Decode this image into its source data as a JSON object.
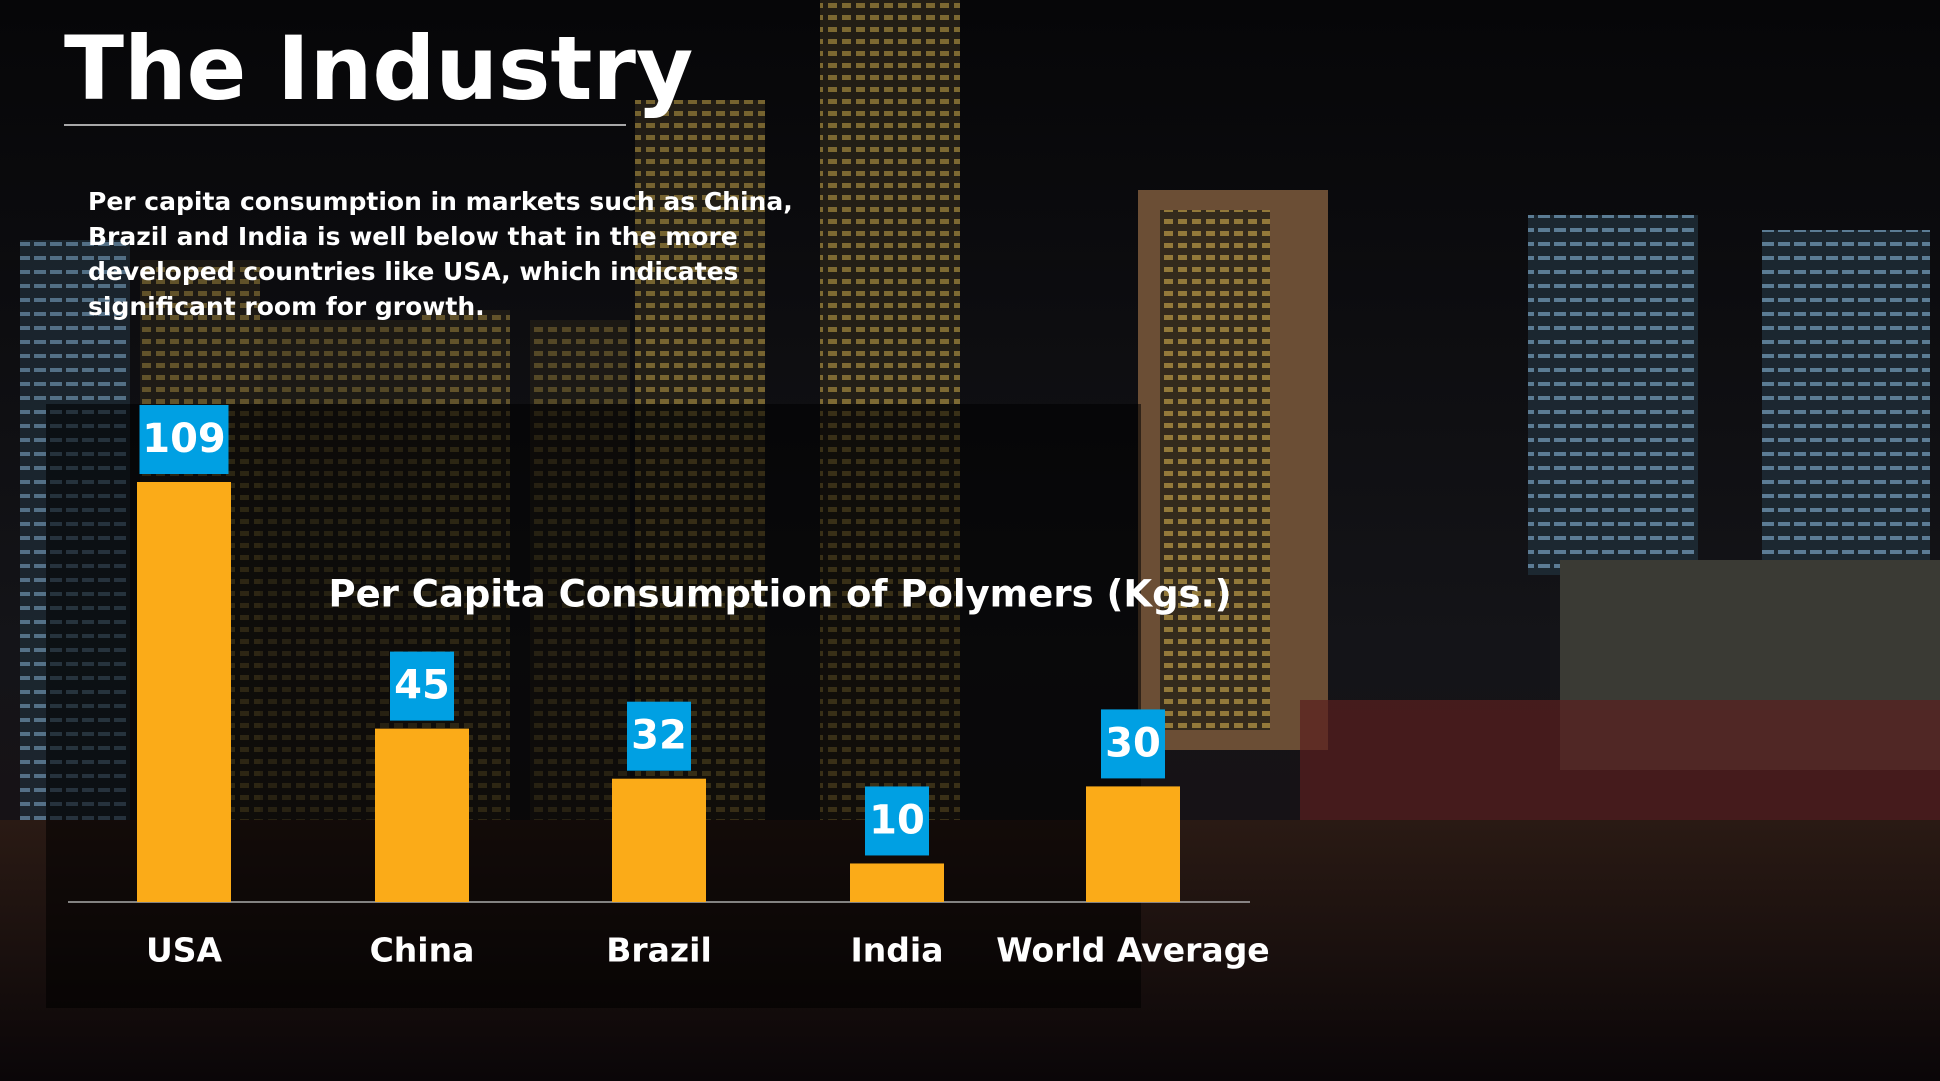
{
  "slide": {
    "title": "The Industry",
    "text": [
      "Per capita consumption in markets such as China,",
      "Brazil and India is well below that in the more",
      "developed countries like USA, which indicates",
      "significant room for growth."
    ]
  },
  "chart_data": {
    "type": "bar",
    "title": "Per Capita Consumption of Polymers (Kgs.)",
    "categories": [
      "USA",
      "China",
      "Brazil",
      "India",
      "World Average"
    ],
    "values": [
      109,
      45,
      32,
      10,
      30
    ],
    "color": "#fbab18",
    "label_color": "#00a0e3"
  }
}
